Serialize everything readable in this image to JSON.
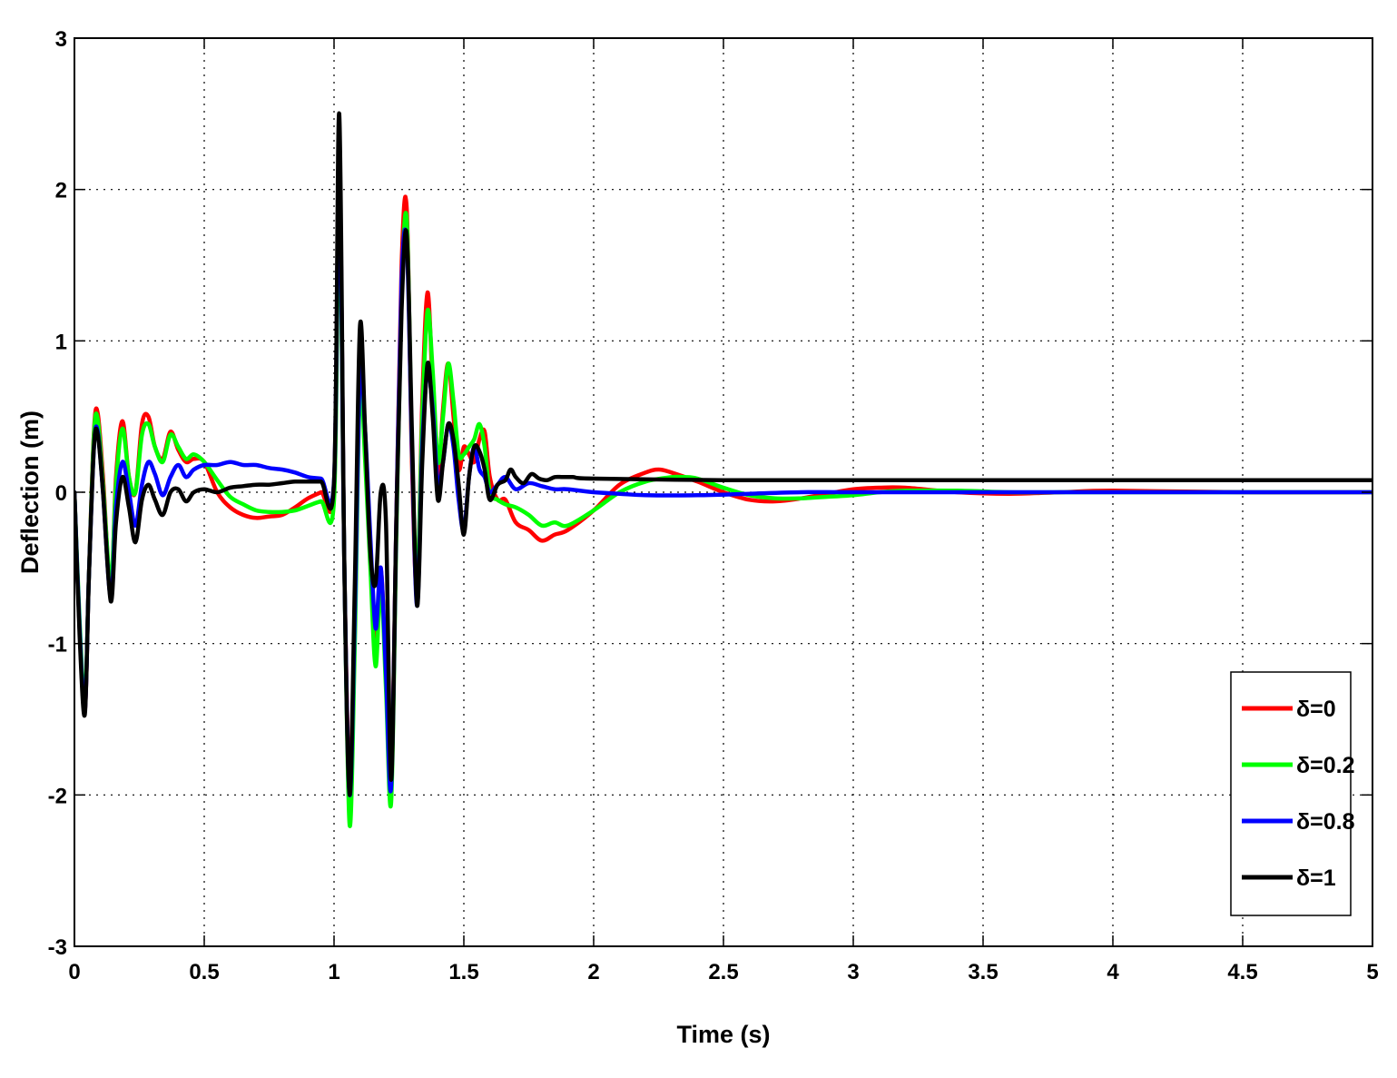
{
  "chart_data": {
    "type": "line",
    "title": "",
    "xlabel": "Time (s)",
    "ylabel": "Deflection (m)",
    "xlim": [
      0,
      5
    ],
    "ylim": [
      -3,
      3
    ],
    "xticks": [
      0,
      0.5,
      1,
      1.5,
      2,
      2.5,
      3,
      3.5,
      4,
      4.5,
      5
    ],
    "xtick_labels": [
      "0",
      "0.5",
      "1",
      "1.5",
      "2",
      "2.5",
      "3",
      "3.5",
      "4",
      "4.5",
      "5"
    ],
    "yticks": [
      -3,
      -2,
      -1,
      0,
      1,
      2,
      3
    ],
    "ytick_labels": [
      "-3",
      "-2",
      "-1",
      "0",
      "1",
      "2",
      "3"
    ],
    "grid": true,
    "legend_position": "bottom-right",
    "series": [
      {
        "name": "δ=0",
        "color": "#ff0000",
        "x": [
          0,
          0.02,
          0.04,
          0.055,
          0.075,
          0.09,
          0.11,
          0.14,
          0.16,
          0.185,
          0.21,
          0.235,
          0.26,
          0.285,
          0.31,
          0.34,
          0.37,
          0.4,
          0.43,
          0.46,
          0.5,
          0.55,
          0.6,
          0.65,
          0.7,
          0.75,
          0.8,
          0.85,
          0.9,
          0.95,
          1.0,
          1.02,
          1.04,
          1.06,
          1.08,
          1.1,
          1.12,
          1.14,
          1.16,
          1.18,
          1.2,
          1.22,
          1.24,
          1.26,
          1.28,
          1.3,
          1.32,
          1.34,
          1.36,
          1.38,
          1.4,
          1.42,
          1.44,
          1.46,
          1.48,
          1.5,
          1.52,
          1.54,
          1.56,
          1.58,
          1.6,
          1.63,
          1.66,
          1.7,
          1.75,
          1.8,
          1.85,
          1.9,
          2.0,
          2.1,
          2.2,
          2.25,
          2.3,
          2.4,
          2.5,
          2.6,
          2.7,
          2.8,
          2.9,
          3.0,
          3.1,
          3.2,
          3.4,
          3.6,
          3.8,
          4.0,
          4.5,
          5.0
        ],
        "y": [
          0.0,
          -0.9,
          -1.45,
          -0.6,
          0.4,
          0.52,
          0.1,
          -0.65,
          0.1,
          0.47,
          0.1,
          0.0,
          0.45,
          0.5,
          0.3,
          0.22,
          0.4,
          0.28,
          0.2,
          0.22,
          0.2,
          0.0,
          -0.1,
          -0.15,
          -0.17,
          -0.16,
          -0.15,
          -0.1,
          -0.04,
          0.0,
          0.04,
          2.2,
          -0.5,
          -1.9,
          -0.8,
          0.8,
          0.3,
          -0.4,
          -1.0,
          -0.5,
          -1.2,
          -1.9,
          -0.2,
          1.5,
          1.87,
          0.2,
          -0.65,
          0.6,
          1.32,
          0.7,
          0.1,
          0.55,
          0.85,
          0.5,
          0.15,
          0.3,
          0.25,
          0.2,
          0.35,
          0.4,
          0.1,
          -0.05,
          -0.05,
          -0.2,
          -0.25,
          -0.32,
          -0.28,
          -0.25,
          -0.12,
          0.05,
          0.13,
          0.15,
          0.13,
          0.07,
          0.0,
          -0.05,
          -0.06,
          -0.04,
          -0.01,
          0.02,
          0.03,
          0.03,
          0.0,
          -0.01,
          0.0,
          0.01,
          0.0,
          0.0
        ]
      },
      {
        "name": "δ=0.2",
        "color": "#00ff00",
        "x": [
          0,
          0.02,
          0.04,
          0.055,
          0.075,
          0.09,
          0.11,
          0.14,
          0.16,
          0.185,
          0.21,
          0.235,
          0.26,
          0.285,
          0.31,
          0.34,
          0.37,
          0.4,
          0.43,
          0.46,
          0.5,
          0.55,
          0.6,
          0.65,
          0.7,
          0.75,
          0.8,
          0.85,
          0.9,
          0.95,
          1.0,
          1.02,
          1.04,
          1.06,
          1.08,
          1.1,
          1.12,
          1.14,
          1.16,
          1.18,
          1.2,
          1.22,
          1.24,
          1.26,
          1.28,
          1.3,
          1.32,
          1.34,
          1.36,
          1.38,
          1.4,
          1.42,
          1.44,
          1.46,
          1.48,
          1.5,
          1.52,
          1.54,
          1.56,
          1.58,
          1.6,
          1.63,
          1.66,
          1.7,
          1.75,
          1.8,
          1.85,
          1.9,
          2.0,
          2.1,
          2.2,
          2.3,
          2.35,
          2.4,
          2.5,
          2.6,
          2.7,
          2.8,
          2.9,
          3.0,
          3.1,
          3.2,
          3.4,
          3.6,
          3.8,
          4.0,
          4.5,
          5.0
        ],
        "y": [
          0.0,
          -0.85,
          -1.4,
          -0.6,
          0.38,
          0.48,
          0.05,
          -0.6,
          0.05,
          0.42,
          0.1,
          0.0,
          0.38,
          0.45,
          0.3,
          0.2,
          0.38,
          0.3,
          0.22,
          0.25,
          0.2,
          0.08,
          -0.03,
          -0.08,
          -0.12,
          -0.13,
          -0.13,
          -0.12,
          -0.09,
          -0.06,
          -0.05,
          2.0,
          -0.5,
          -2.2,
          -1.0,
          0.7,
          0.2,
          -0.5,
          -1.15,
          -0.6,
          -1.3,
          -2.05,
          -0.3,
          1.3,
          1.8,
          0.3,
          -0.6,
          0.5,
          1.2,
          0.8,
          0.2,
          0.5,
          0.85,
          0.6,
          0.25,
          0.25,
          0.3,
          0.35,
          0.45,
          0.3,
          0.0,
          -0.05,
          -0.08,
          -0.1,
          -0.15,
          -0.22,
          -0.2,
          -0.22,
          -0.12,
          0.0,
          0.07,
          0.1,
          0.1,
          0.09,
          0.03,
          -0.02,
          -0.04,
          -0.04,
          -0.03,
          -0.02,
          0.0,
          0.01,
          0.01,
          0.0,
          0.0,
          0.0,
          0.0,
          0.0
        ]
      },
      {
        "name": "δ=0.8",
        "color": "#0000ff",
        "x": [
          0,
          0.02,
          0.04,
          0.055,
          0.075,
          0.09,
          0.11,
          0.14,
          0.16,
          0.185,
          0.21,
          0.235,
          0.26,
          0.285,
          0.31,
          0.34,
          0.37,
          0.4,
          0.43,
          0.46,
          0.5,
          0.55,
          0.6,
          0.65,
          0.7,
          0.75,
          0.8,
          0.85,
          0.9,
          0.95,
          1.0,
          1.02,
          1.04,
          1.06,
          1.08,
          1.1,
          1.12,
          1.14,
          1.16,
          1.18,
          1.2,
          1.22,
          1.24,
          1.26,
          1.28,
          1.3,
          1.32,
          1.34,
          1.36,
          1.38,
          1.4,
          1.42,
          1.44,
          1.46,
          1.48,
          1.5,
          1.52,
          1.54,
          1.56,
          1.58,
          1.6,
          1.63,
          1.66,
          1.7,
          1.75,
          1.8,
          1.85,
          1.9,
          2.0,
          2.1,
          2.2,
          2.4,
          2.6,
          2.8,
          3.0,
          3.5,
          4.0,
          4.5,
          5.0
        ],
        "y": [
          0.0,
          -0.9,
          -1.45,
          -0.6,
          0.3,
          0.4,
          0.0,
          -0.7,
          -0.1,
          0.2,
          0.0,
          -0.22,
          0.05,
          0.2,
          0.12,
          -0.02,
          0.1,
          0.18,
          0.1,
          0.15,
          0.18,
          0.18,
          0.2,
          0.18,
          0.18,
          0.16,
          0.15,
          0.13,
          0.1,
          0.09,
          0.08,
          2.2,
          -0.5,
          -2.0,
          -0.8,
          0.8,
          0.4,
          -0.3,
          -0.9,
          -0.5,
          -1.2,
          -1.95,
          -0.2,
          1.4,
          1.65,
          0.3,
          -0.75,
          0.3,
          0.8,
          0.55,
          0.05,
          0.2,
          0.45,
          0.3,
          -0.05,
          -0.25,
          0.1,
          0.3,
          0.15,
          0.1,
          0.0,
          0.05,
          0.1,
          0.02,
          0.06,
          0.04,
          0.02,
          0.02,
          0.0,
          -0.01,
          -0.02,
          -0.02,
          -0.01,
          0.0,
          0.0,
          0.0,
          0.0,
          0.0,
          0.0
        ]
      },
      {
        "name": "δ=1",
        "color": "#000000",
        "x": [
          0,
          0.02,
          0.04,
          0.055,
          0.075,
          0.09,
          0.11,
          0.14,
          0.16,
          0.185,
          0.21,
          0.235,
          0.26,
          0.285,
          0.31,
          0.34,
          0.37,
          0.4,
          0.43,
          0.46,
          0.5,
          0.55,
          0.6,
          0.65,
          0.7,
          0.75,
          0.8,
          0.85,
          0.9,
          0.95,
          1.0,
          1.02,
          1.04,
          1.06,
          1.08,
          1.1,
          1.12,
          1.14,
          1.16,
          1.18,
          1.2,
          1.22,
          1.24,
          1.26,
          1.28,
          1.3,
          1.32,
          1.34,
          1.36,
          1.38,
          1.4,
          1.42,
          1.44,
          1.46,
          1.48,
          1.5,
          1.52,
          1.54,
          1.56,
          1.58,
          1.6,
          1.63,
          1.66,
          1.68,
          1.7,
          1.73,
          1.76,
          1.79,
          1.82,
          1.85,
          1.88,
          1.92,
          2.0,
          2.5,
          3.0,
          3.5,
          4.0,
          4.5,
          5.0
        ],
        "y": [
          0.0,
          -0.95,
          -1.47,
          -0.6,
          0.3,
          0.38,
          0.0,
          -0.72,
          -0.2,
          0.1,
          -0.1,
          -0.33,
          -0.05,
          0.05,
          -0.05,
          -0.15,
          0.0,
          0.02,
          -0.06,
          0.0,
          0.02,
          0.0,
          0.03,
          0.04,
          0.05,
          0.05,
          0.06,
          0.07,
          0.07,
          0.07,
          0.07,
          2.5,
          -0.5,
          -2.0,
          -0.6,
          1.1,
          0.4,
          -0.4,
          -0.6,
          0.0,
          -0.2,
          -1.9,
          -0.2,
          1.2,
          1.7,
          0.4,
          -0.75,
          0.2,
          0.85,
          0.5,
          -0.05,
          0.2,
          0.45,
          0.35,
          0.05,
          -0.28,
          0.1,
          0.3,
          0.27,
          0.15,
          -0.05,
          0.05,
          0.08,
          0.15,
          0.1,
          0.06,
          0.12,
          0.09,
          0.08,
          0.1,
          0.1,
          0.1,
          0.09,
          0.08,
          0.08,
          0.08,
          0.08,
          0.08,
          0.08
        ]
      }
    ]
  }
}
